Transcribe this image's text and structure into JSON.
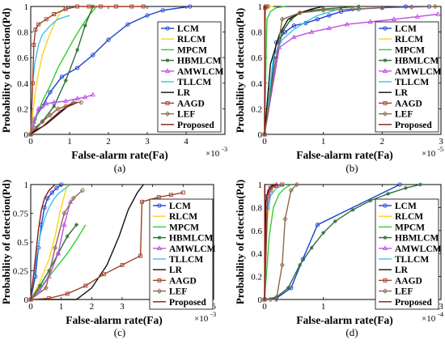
{
  "figure": {
    "panel_labels": [
      "(a)",
      "(b)",
      "(c)",
      "(d)"
    ]
  },
  "colors": {
    "LCM": "#1f3fd0",
    "RLCM": "#ffd21a",
    "MPCM": "#33cc33",
    "HBMLCM": "#2f6e35",
    "AMWLCM": "#c050e8",
    "TLLCM": "#37c4ea",
    "LR": "#111111",
    "AAGD": "#a0402a",
    "LEF": "#8a6a4a",
    "Proposed": "#8b1a1a"
  },
  "chart_data": [
    {
      "type": "line",
      "panel": "(a)",
      "xlabel": "False-alarm rate(Fa)",
      "ylabel": "Probability of detection(Pd)",
      "x_multiplier": "×10",
      "x_exponent": "-3",
      "xlim": [
        0,
        5
      ],
      "ylim": [
        0,
        1
      ],
      "xticks": [
        "0",
        "1",
        "2",
        "3",
        "4"
      ],
      "xtick_values": [
        0,
        1,
        2,
        3,
        4
      ],
      "yticks": [
        "0",
        "0.2",
        "0.4",
        "0.6",
        "0.8",
        "1"
      ],
      "ytick_values": [
        0,
        0.2,
        0.4,
        0.6,
        0.8,
        1
      ],
      "legend": [
        "LCM",
        "RLCM",
        "MPCM",
        "HBMLCM",
        "AMWLCM",
        "TLLCM",
        "LR",
        "AAGD",
        "LEF",
        "Proposed"
      ],
      "series": [
        {
          "name": "LCM",
          "x": [
            0,
            0.1,
            0.3,
            0.5,
            0.8,
            1.2,
            1.6,
            2.0,
            2.5,
            3.0,
            3.4,
            4.1
          ],
          "y": [
            0,
            0.12,
            0.22,
            0.33,
            0.45,
            0.52,
            0.62,
            0.74,
            0.86,
            0.93,
            0.97,
            1.0
          ]
        },
        {
          "name": "RLCM",
          "x": [
            0,
            0.05,
            0.1,
            0.2,
            0.3,
            0.45,
            0.6,
            0.75,
            0.9
          ],
          "y": [
            0,
            0.15,
            0.3,
            0.48,
            0.62,
            0.75,
            0.86,
            0.95,
            1.0
          ]
        },
        {
          "name": "MPCM",
          "x": [
            0,
            0.15,
            0.3,
            0.5,
            0.7,
            0.9,
            1.1,
            1.3,
            1.5,
            1.7
          ],
          "y": [
            0,
            0.14,
            0.26,
            0.38,
            0.52,
            0.63,
            0.74,
            0.84,
            0.93,
            1.0
          ]
        },
        {
          "name": "HBMLCM",
          "x": [
            0,
            0.3,
            0.6,
            0.9,
            1.2,
            1.4,
            1.6
          ],
          "y": [
            0,
            0.1,
            0.22,
            0.42,
            0.66,
            0.85,
            1.0
          ]
        },
        {
          "name": "AMWLCM",
          "x": [
            0,
            0.08,
            0.2,
            0.4,
            0.6,
            0.9,
            1.2,
            1.4,
            1.6
          ],
          "y": [
            0,
            0.1,
            0.2,
            0.24,
            0.25,
            0.26,
            0.28,
            0.29,
            0.31
          ]
        },
        {
          "name": "TLLCM",
          "x": [
            0,
            0.05,
            0.1,
            0.2,
            0.3,
            0.5,
            0.7,
            1.0
          ],
          "y": [
            0,
            0.4,
            0.55,
            0.7,
            0.78,
            0.85,
            0.9,
            0.93
          ]
        },
        {
          "name": "LR",
          "x": [
            0,
            0.2,
            0.4,
            0.6,
            0.8,
            1.0,
            1.1
          ],
          "y": [
            0,
            0.04,
            0.08,
            0.13,
            0.18,
            0.23,
            0.25
          ]
        },
        {
          "name": "AAGD",
          "x": [
            0,
            0.05,
            0.08,
            0.12,
            0.2,
            0.4,
            0.6,
            0.9,
            1.2,
            1.5,
            1.8,
            2.2,
            2.6,
            2.9
          ],
          "y": [
            0,
            0.4,
            0.7,
            0.82,
            0.86,
            0.9,
            0.94,
            0.98,
            1.0,
            1.0,
            1.0,
            1.0,
            1.0,
            1.0
          ]
        },
        {
          "name": "LEF",
          "x": [
            0,
            0.1,
            0.3,
            0.5,
            0.7,
            0.9,
            1.1,
            1.3
          ],
          "y": [
            0,
            0.05,
            0.1,
            0.15,
            0.2,
            0.22,
            0.25,
            0.25
          ]
        },
        {
          "name": "Proposed",
          "x": [
            0,
            0.06,
            0.15,
            0.3,
            0.45,
            0.6,
            0.75,
            0.9,
            1.05,
            1.2
          ],
          "y": [
            0,
            0.02,
            0.04,
            0.06,
            0.1,
            0.14,
            0.18,
            0.21,
            0.23,
            0.25
          ]
        }
      ]
    },
    {
      "type": "line",
      "panel": "(b)",
      "xlabel": "False-alarm rate(Fa)",
      "ylabel": "Probability of detection(Pd)",
      "x_multiplier": "×10",
      "x_exponent": "-5",
      "xlim": [
        0,
        3
      ],
      "ylim": [
        0,
        1
      ],
      "xticks": [
        "0",
        "1",
        "2",
        "3"
      ],
      "xtick_values": [
        0,
        1,
        2,
        3
      ],
      "yticks": [
        "0",
        "0.2",
        "0.4",
        "0.6",
        "0.8",
        "1"
      ],
      "ytick_values": [
        0,
        0.2,
        0.4,
        0.6,
        0.8,
        1
      ],
      "legend": [
        "LCM",
        "RLCM",
        "MPCM",
        "HBMLCM",
        "AMWLCM",
        "TLLCM",
        "LR",
        "AAGD",
        "LEF",
        "Proposed"
      ],
      "series": [
        {
          "name": "LCM",
          "x": [
            0,
            0.2,
            0.35,
            0.5,
            0.7,
            0.9,
            1.1,
            1.3,
            1.6,
            2.0,
            2.4,
            2.8
          ],
          "y": [
            0,
            0.72,
            0.8,
            0.85,
            0.87,
            0.9,
            0.93,
            0.96,
            0.98,
            0.99,
            1.0,
            1.0
          ]
        },
        {
          "name": "RLCM",
          "x": [
            0,
            0.01,
            0.03,
            0.08,
            0.15
          ],
          "y": [
            0,
            0.97,
            0.99,
            1.0,
            1.0
          ]
        },
        {
          "name": "MPCM",
          "x": [
            0,
            0.04,
            0.1,
            0.2,
            0.35
          ],
          "y": [
            0,
            0.9,
            0.96,
            0.99,
            1.0
          ]
        },
        {
          "name": "HBMLCM",
          "x": [
            0,
            0.1,
            0.2,
            0.3,
            0.45,
            0.6,
            0.8,
            1.0,
            1.3,
            1.6
          ],
          "y": [
            0,
            0.35,
            0.6,
            0.8,
            0.9,
            0.95,
            0.97,
            0.98,
            0.99,
            1.0
          ]
        },
        {
          "name": "AMWLCM",
          "x": [
            0,
            0.25,
            0.5,
            0.8,
            1.1,
            1.4,
            1.8,
            2.2,
            2.6,
            2.95
          ],
          "y": [
            0,
            0.68,
            0.76,
            0.8,
            0.83,
            0.86,
            0.88,
            0.9,
            0.92,
            0.94
          ]
        },
        {
          "name": "TLLCM",
          "x": [
            0,
            0.15,
            0.3,
            0.5,
            0.7,
            0.9,
            1.2
          ],
          "y": [
            0,
            0.6,
            0.74,
            0.82,
            0.88,
            0.93,
            0.97
          ]
        },
        {
          "name": "LR",
          "x": [
            0,
            0.1,
            0.25,
            0.4,
            0.6,
            0.8,
            1.0
          ],
          "y": [
            0,
            0.55,
            0.78,
            0.9,
            0.95,
            0.98,
            1.0
          ]
        },
        {
          "name": "AAGD",
          "x": [
            0,
            0.01,
            0.02,
            0.05
          ],
          "y": [
            0,
            0.99,
            1.0,
            1.0
          ]
        },
        {
          "name": "LEF",
          "x": [
            0,
            0.3,
            0.6,
            1.0,
            1.5,
            2.0,
            2.5,
            2.9
          ],
          "y": [
            0,
            0.9,
            0.95,
            0.97,
            0.98,
            0.99,
            0.995,
            1.0
          ]
        },
        {
          "name": "Proposed",
          "x": [
            0,
            0.005,
            0.02
          ],
          "y": [
            0,
            1.0,
            1.0
          ]
        }
      ]
    },
    {
      "type": "line",
      "panel": "(c)",
      "xlabel": "False-alarm rate(Fa)",
      "ylabel": "Probability of detection(Pd)",
      "x_multiplier": "×10",
      "x_exponent": "-3",
      "xlim": [
        0,
        6
      ],
      "ylim": [
        0,
        1
      ],
      "xticks": [
        "0",
        "1",
        "2",
        "3",
        "4",
        "5",
        "6"
      ],
      "xtick_values": [
        0,
        1,
        2,
        3,
        4,
        5,
        6
      ],
      "yticks": [
        "0",
        "0.25",
        "0.5",
        "0.75",
        "1"
      ],
      "ytick_values": [
        0,
        0.25,
        0.5,
        0.75,
        1
      ],
      "legend": [
        "LCM",
        "RLCM",
        "MPCM",
        "HBMLCM",
        "AMWLCM",
        "TLLCM",
        "LR",
        "AAGD",
        "LEF",
        "Proposed"
      ],
      "series": [
        {
          "name": "LCM",
          "x": [
            0,
            0.15,
            0.25,
            0.35,
            0.45,
            0.55,
            0.7,
            0.85,
            1.0
          ],
          "y": [
            0,
            0.2,
            0.45,
            0.65,
            0.8,
            0.88,
            0.93,
            0.97,
            1.0
          ]
        },
        {
          "name": "RLCM",
          "x": [
            0,
            0.3,
            0.6,
            0.8,
            0.95,
            1.1,
            1.2
          ],
          "y": [
            0,
            0.15,
            0.35,
            0.55,
            0.75,
            0.9,
            1.0
          ]
        },
        {
          "name": "MPCM",
          "x": [
            0,
            0.3,
            0.6,
            0.9,
            1.2,
            1.5,
            1.8
          ],
          "y": [
            0,
            0.1,
            0.2,
            0.3,
            0.4,
            0.52,
            0.65
          ]
        },
        {
          "name": "HBMLCM",
          "x": [
            0,
            0.3,
            0.6,
            0.9,
            1.2,
            1.5
          ],
          "y": [
            0,
            0.12,
            0.25,
            0.4,
            0.55,
            0.65
          ]
        },
        {
          "name": "AMWLCM",
          "x": [
            0,
            0.3,
            0.6,
            0.9,
            1.1,
            1.3
          ],
          "y": [
            0,
            0.08,
            0.2,
            0.4,
            0.65,
            0.85
          ]
        },
        {
          "name": "TLLCM",
          "x": [
            0,
            0.15,
            0.3,
            0.45,
            0.6,
            0.75,
            0.9,
            1.1,
            1.3
          ],
          "y": [
            0,
            0.3,
            0.55,
            0.7,
            0.8,
            0.87,
            0.92,
            0.96,
            1.0
          ]
        },
        {
          "name": "LR",
          "x": [
            0,
            1.5,
            2.0,
            2.5,
            2.9,
            3.2,
            3.5,
            3.7
          ],
          "y": [
            0,
            0.0,
            0.1,
            0.3,
            0.55,
            0.78,
            0.93,
            1.0
          ]
        },
        {
          "name": "AAGD",
          "x": [
            0,
            0.6,
            1.2,
            1.8,
            2.4,
            3.0,
            3.6,
            3.65,
            4.2,
            4.6,
            5.0
          ],
          "y": [
            0,
            0.01,
            0.05,
            0.12,
            0.22,
            0.3,
            0.38,
            0.85,
            0.89,
            0.91,
            0.93
          ]
        },
        {
          "name": "LEF",
          "x": [
            0,
            0.5,
            0.8,
            1.1,
            1.4,
            1.7
          ],
          "y": [
            0,
            0.1,
            0.45,
            0.75,
            0.88,
            0.95
          ]
        },
        {
          "name": "Proposed",
          "x": [
            0,
            0.15,
            0.25,
            0.35,
            0.45,
            0.6,
            0.8
          ],
          "y": [
            0,
            0.35,
            0.6,
            0.78,
            0.88,
            0.95,
            1.0
          ]
        }
      ]
    },
    {
      "type": "line",
      "panel": "(d)",
      "xlabel": "False-alarm rate(Fa)",
      "ylabel": "Probability of detection(Pd)",
      "x_multiplier": "×10",
      "x_exponent": "-4",
      "xlim": [
        0,
        3
      ],
      "ylim": [
        0,
        1
      ],
      "xticks": [
        "0",
        "1",
        "2",
        "3"
      ],
      "xtick_values": [
        0,
        1,
        2,
        3
      ],
      "yticks": [
        "0",
        "0.2",
        "0.4",
        "0.6",
        "0.8",
        "1"
      ],
      "ytick_values": [
        0,
        0.2,
        0.4,
        0.6,
        0.8,
        1
      ],
      "legend": [
        "LCM",
        "RLCM",
        "MPCM",
        "HBMLCM",
        "AMWLCM",
        "TLLCM",
        "LR",
        "AAGD",
        "LEF",
        "Proposed"
      ],
      "series": [
        {
          "name": "LCM",
          "x": [
            0,
            0.2,
            0.45,
            0.65,
            0.9,
            2.3
          ],
          "y": [
            0,
            0.01,
            0.1,
            0.35,
            0.65,
            1.0
          ]
        },
        {
          "name": "RLCM",
          "x": [
            0,
            0.05,
            0.1,
            0.15,
            0.25
          ],
          "y": [
            0,
            0.7,
            0.9,
            0.97,
            1.0
          ]
        },
        {
          "name": "MPCM",
          "x": [
            0,
            0.08,
            0.15,
            0.25,
            0.35,
            0.45
          ],
          "y": [
            0,
            0.55,
            0.8,
            0.92,
            0.97,
            1.0
          ]
        },
        {
          "name": "HBMLCM",
          "x": [
            0,
            0.2,
            0.4,
            0.6,
            0.8,
            1.0,
            1.2,
            1.5,
            1.8,
            2.1,
            2.4,
            2.65
          ],
          "y": [
            0,
            0.02,
            0.1,
            0.3,
            0.45,
            0.58,
            0.68,
            0.78,
            0.86,
            0.92,
            0.97,
            1.0
          ]
        },
        {
          "name": "AMWLCM",
          "x": [
            0,
            0.05,
            0.1,
            0.15,
            0.2
          ],
          "y": [
            0,
            0.8,
            0.95,
            0.99,
            1.0
          ]
        },
        {
          "name": "TLLCM",
          "x": [
            0,
            0.04,
            0.1,
            0.2,
            0.35
          ],
          "y": [
            0,
            0.75,
            0.9,
            0.97,
            1.0
          ]
        },
        {
          "name": "LR",
          "x": [
            0,
            0.02,
            0.06,
            0.12,
            0.2
          ],
          "y": [
            0,
            0.85,
            0.95,
            0.99,
            1.0
          ]
        },
        {
          "name": "AAGD",
          "x": [
            0,
            0.05,
            0.1,
            0.2,
            0.3
          ],
          "y": [
            0,
            0.9,
            0.97,
            0.99,
            1.0
          ]
        },
        {
          "name": "LEF",
          "x": [
            0,
            0.1,
            0.2,
            0.3,
            0.35,
            0.45,
            0.55
          ],
          "y": [
            0,
            0.0,
            0.0,
            0.3,
            0.7,
            0.95,
            1.0
          ]
        },
        {
          "name": "Proposed",
          "x": [
            0,
            0.005,
            0.02
          ],
          "y": [
            0,
            1.0,
            1.0
          ]
        }
      ]
    }
  ]
}
